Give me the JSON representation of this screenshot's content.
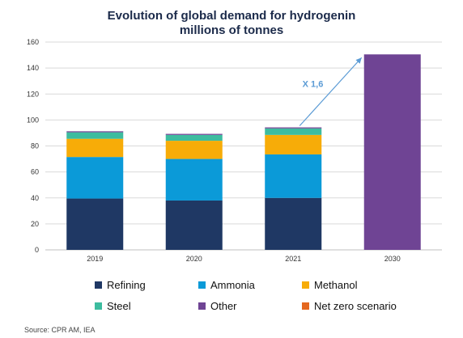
{
  "chart_data": {
    "type": "bar",
    "stacked": true,
    "title": "Evolution of global demand for hydrogenin",
    "subtitle": "millions of tonnes",
    "categories": [
      "2019",
      "2020",
      "2021",
      "2030"
    ],
    "ylim": [
      0,
      160
    ],
    "yticks": [
      0,
      20,
      40,
      60,
      80,
      100,
      120,
      140,
      160
    ],
    "grid": true,
    "legend": "bottom",
    "series": [
      {
        "name": "Refining",
        "color": "#1f3864",
        "values": [
          39.5,
          38,
          40,
          0
        ]
      },
      {
        "name": "Ammonia",
        "color": "#0b9ad8",
        "values": [
          32,
          32,
          33.5,
          0
        ]
      },
      {
        "name": "Methanol",
        "color": "#f7ac08",
        "values": [
          14,
          14,
          15,
          0
        ]
      },
      {
        "name": "Steel",
        "color": "#3dbc9f",
        "values": [
          5,
          4.5,
          5,
          0
        ]
      },
      {
        "name": "Other",
        "color": "#6f4494",
        "values": [
          0.8,
          0.8,
          0.8,
          150.5
        ]
      },
      {
        "name": "Net zero scenario",
        "color": "#e4681f",
        "values": [
          0,
          0,
          0,
          0
        ]
      }
    ],
    "annotations": [
      {
        "text": "X 1,6",
        "color": "#5b9bd5",
        "from_category": "2021",
        "to_category": "2030"
      }
    ]
  },
  "source": "Source: CPR AM, IEA"
}
